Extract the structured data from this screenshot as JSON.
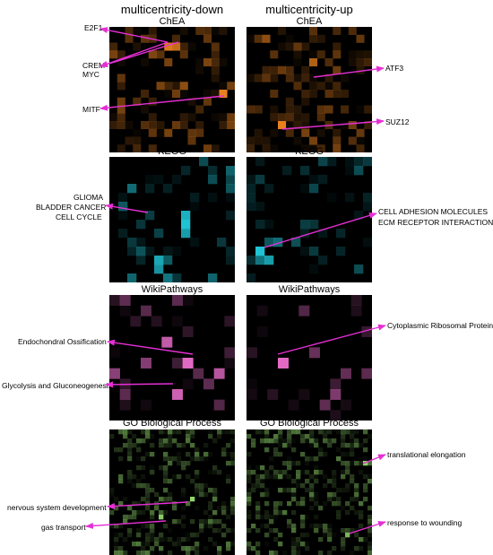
{
  "columns": [
    {
      "title": "multicentricity-down"
    },
    {
      "title": "multicentricity-up"
    }
  ],
  "rows": [
    {
      "title": "ChEA",
      "color": "#e8801e"
    },
    {
      "title": "KEGG",
      "color": "#1fc3d3"
    },
    {
      "title": "WikiPathways",
      "color": "#e36ac4"
    },
    {
      "title": "GO Biological Process",
      "color": "#8fd56a"
    }
  ],
  "labels": {
    "chea_down_e2f1": "E2F1",
    "chea_down_crem": "CREM",
    "chea_down_myc": "MYC",
    "chea_down_mitf": "MITF",
    "chea_up_atf3": "ATF3",
    "chea_up_suz12": "SUZ12",
    "kegg_down_glioma": "GLIOMA",
    "kegg_down_bladder": "BLADDER CANCER",
    "kegg_down_cellcycle": "CELL CYCLE",
    "kegg_up_cam": "CELL ADHESION MOLECULES",
    "kegg_up_ecm": "ECM RECEPTOR INTERACTION",
    "wiki_down_endo": "Endochondral Ossification",
    "wiki_down_glyco": "Glycolysis and Gluconeogenesis",
    "wiki_up_ribo": "Cytoplasmic Ribosomal Proteins",
    "go_down_nervous": "nervous system development",
    "go_down_gas": "gas transport",
    "go_up_trans": "translational elongation",
    "go_up_wound": "response to wounding"
  },
  "arrow_color": "#e62fd5"
}
